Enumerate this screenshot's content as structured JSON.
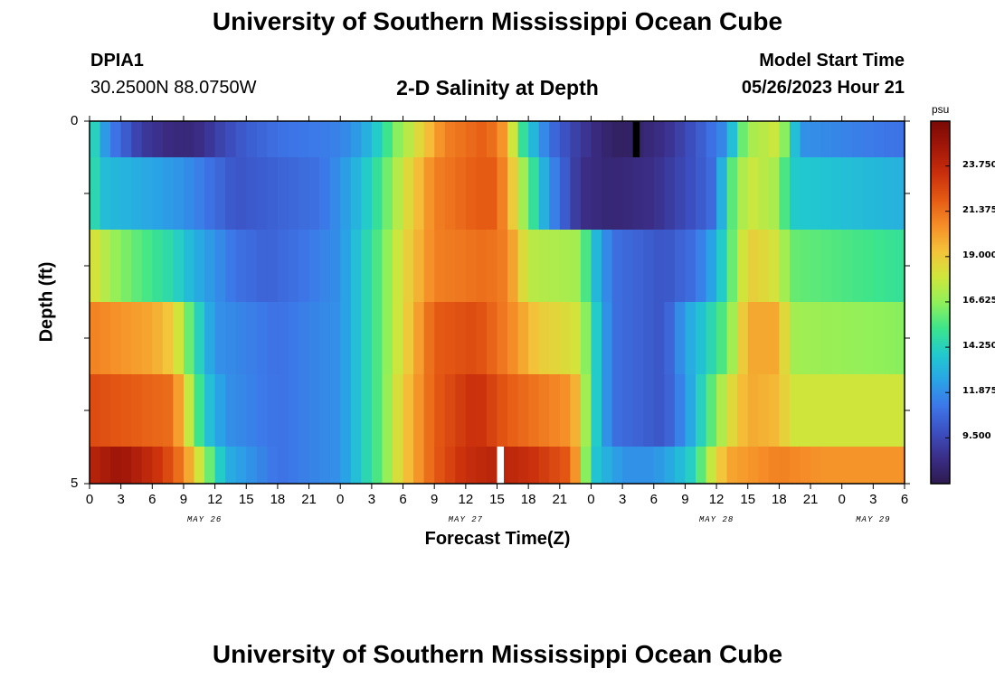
{
  "header": {
    "title_top": "University of Southern Mississippi Ocean Cube",
    "title_bottom": "University of Southern Mississippi Ocean Cube",
    "station_id": "DPIA1",
    "coords": "30.2500N  88.0750W",
    "plot_title": "2-D Salinity at Depth",
    "model_label": "Model Start Time",
    "model_time": "05/26/2023 Hour 21"
  },
  "colors": {
    "ramp": [
      "#2c1a4d",
      "#3b2d86",
      "#3c4fc0",
      "#3d76e8",
      "#2aa3e6",
      "#21c9cf",
      "#3be48d",
      "#8ff05a",
      "#cfe63c",
      "#f4c33a",
      "#f58d27",
      "#e55a14",
      "#c92f0c",
      "#a31809",
      "#7a0906"
    ],
    "missing_light": "#ffffff",
    "missing_dark": "#000000"
  },
  "chart_data": {
    "type": "heatmap",
    "title": "2-D Salinity at Depth",
    "xlabel": "Forecast Time(Z)",
    "ylabel": "Depth (ft)",
    "y_tick_labels": [
      "0",
      "5"
    ],
    "ylim": [
      0,
      5
    ],
    "x_hours": [
      0,
      3,
      6,
      9,
      12,
      15,
      18,
      21,
      24,
      27,
      30,
      33,
      36,
      39,
      42,
      45,
      48,
      51,
      54,
      57,
      60,
      63,
      66,
      69,
      72,
      75,
      78
    ],
    "x_tick_labels": [
      "0",
      "3",
      "6",
      "9",
      "12",
      "15",
      "18",
      "21",
      "0",
      "3",
      "6",
      "9",
      "12",
      "15",
      "18",
      "21",
      "0",
      "3",
      "6",
      "9",
      "12",
      "15",
      "18",
      "21",
      "0",
      "3",
      "6"
    ],
    "date_labels": [
      {
        "label": "MAY 26",
        "hour": 11
      },
      {
        "label": "MAY 27",
        "hour": 36
      },
      {
        "label": "MAY 28",
        "hour": 60
      },
      {
        "label": "MAY 29",
        "hour": 75
      }
    ],
    "colorbar": {
      "unit": "psu",
      "min": 7.1,
      "max": 26.1,
      "tick_values": [
        9.5,
        11.875,
        14.25,
        16.625,
        19.0,
        21.375,
        23.75
      ],
      "tick_labels": [
        "9.500",
        "11.875",
        "14.250",
        "16.625",
        "19.000",
        "21.375",
        "23.750"
      ]
    },
    "layers": [
      {
        "depth_ft": 0.25,
        "salinity_keyframes": [
          [
            0,
            15.5
          ],
          [
            1,
            13
          ],
          [
            2,
            11.5
          ],
          [
            5,
            9
          ],
          [
            8,
            8.2
          ],
          [
            10,
            8.2
          ],
          [
            14,
            10
          ],
          [
            18,
            11
          ],
          [
            24,
            11.5
          ],
          [
            26,
            12.5
          ],
          [
            28,
            14.5
          ],
          [
            29,
            16
          ],
          [
            31,
            18
          ],
          [
            34,
            21
          ],
          [
            38,
            22
          ],
          [
            40,
            20
          ],
          [
            41,
            16
          ],
          [
            42,
            14
          ],
          [
            44,
            11
          ],
          [
            46,
            9.5
          ],
          [
            49,
            8
          ],
          [
            51,
            7.5
          ],
          [
            55,
            8.5
          ],
          [
            58,
            10
          ],
          [
            61,
            12
          ],
          [
            62,
            15
          ],
          [
            63,
            17
          ],
          [
            66,
            18
          ],
          [
            67,
            15
          ],
          [
            68,
            12
          ],
          [
            78,
            11
          ]
        ]
      },
      {
        "depth_ft": 1.0,
        "salinity_keyframes": [
          [
            0,
            15.5
          ],
          [
            1,
            13.5
          ],
          [
            4,
            13
          ],
          [
            9,
            12
          ],
          [
            14,
            10
          ],
          [
            18,
            10.5
          ],
          [
            22,
            11
          ],
          [
            24,
            12
          ],
          [
            26,
            13.5
          ],
          [
            28,
            15.5
          ],
          [
            30,
            18
          ],
          [
            33,
            21
          ],
          [
            37,
            22
          ],
          [
            39,
            22
          ],
          [
            40,
            20
          ],
          [
            42,
            16
          ],
          [
            44,
            12
          ],
          [
            47,
            8.5
          ],
          [
            50,
            8
          ],
          [
            54,
            8.5
          ],
          [
            58,
            10
          ],
          [
            60,
            11
          ],
          [
            61,
            15
          ],
          [
            63,
            18
          ],
          [
            66,
            17
          ],
          [
            67,
            14
          ],
          [
            78,
            13
          ]
        ]
      },
      {
        "depth_ft": 2.0,
        "salinity_keyframes": [
          [
            0,
            18.5
          ],
          [
            2,
            17
          ],
          [
            4,
            16
          ],
          [
            8,
            14.5
          ],
          [
            10,
            13
          ],
          [
            14,
            11
          ],
          [
            17,
            10.5
          ],
          [
            20,
            11
          ],
          [
            24,
            12
          ],
          [
            26,
            14
          ],
          [
            28,
            16
          ],
          [
            30,
            18.5
          ],
          [
            33,
            21
          ],
          [
            38,
            21.5
          ],
          [
            40,
            21
          ],
          [
            42,
            17.5
          ],
          [
            47,
            17
          ],
          [
            48,
            14
          ],
          [
            50,
            11
          ],
          [
            55,
            10
          ],
          [
            58,
            11
          ],
          [
            60,
            13
          ],
          [
            61,
            15
          ],
          [
            63,
            19
          ],
          [
            66,
            18
          ],
          [
            67,
            16
          ],
          [
            78,
            15
          ]
        ]
      },
      {
        "depth_ft": 3.0,
        "salinity_keyframes": [
          [
            0,
            21
          ],
          [
            6,
            20
          ],
          [
            8,
            19
          ],
          [
            9,
            17
          ],
          [
            10,
            15
          ],
          [
            12,
            12
          ],
          [
            18,
            11
          ],
          [
            24,
            12
          ],
          [
            26,
            14
          ],
          [
            28,
            16
          ],
          [
            30,
            18.5
          ],
          [
            33,
            22
          ],
          [
            37,
            22.5
          ],
          [
            40,
            21
          ],
          [
            43,
            19
          ],
          [
            47,
            18
          ],
          [
            48,
            15
          ],
          [
            50,
            11
          ],
          [
            55,
            10
          ],
          [
            57,
            12.5
          ],
          [
            59,
            14
          ],
          [
            61,
            16
          ],
          [
            63,
            20
          ],
          [
            66,
            20
          ],
          [
            67,
            17
          ],
          [
            78,
            16.5
          ]
        ]
      },
      {
        "depth_ft": 4.0,
        "salinity_keyframes": [
          [
            0,
            22.5
          ],
          [
            8,
            21.5
          ],
          [
            9,
            19
          ],
          [
            10,
            16.5
          ],
          [
            11,
            14
          ],
          [
            13,
            12
          ],
          [
            18,
            11
          ],
          [
            24,
            12
          ],
          [
            26,
            14
          ],
          [
            28,
            16
          ],
          [
            30,
            19
          ],
          [
            33,
            22
          ],
          [
            37,
            23.5
          ],
          [
            40,
            22
          ],
          [
            46,
            20.5
          ],
          [
            47,
            19
          ],
          [
            48,
            15
          ],
          [
            50,
            11
          ],
          [
            55,
            10
          ],
          [
            57,
            12
          ],
          [
            59,
            15
          ],
          [
            61,
            18
          ],
          [
            63,
            20
          ],
          [
            66,
            19.5
          ],
          [
            67,
            18
          ],
          [
            78,
            18
          ]
        ]
      },
      {
        "depth_ft": 4.75,
        "salinity_keyframes": [
          [
            0,
            24
          ],
          [
            3,
            25
          ],
          [
            7,
            23
          ],
          [
            9,
            21
          ],
          [
            10,
            19
          ],
          [
            11,
            17
          ],
          [
            12,
            15
          ],
          [
            13,
            13
          ],
          [
            18,
            11
          ],
          [
            24,
            12
          ],
          [
            26,
            14
          ],
          [
            28,
            16
          ],
          [
            30,
            19
          ],
          [
            33,
            22
          ],
          [
            36,
            23.5
          ],
          [
            39,
            24
          ],
          [
            42,
            23.5
          ],
          [
            46,
            22
          ],
          [
            47,
            19
          ],
          [
            48,
            14
          ],
          [
            51,
            12
          ],
          [
            54,
            12
          ],
          [
            56,
            13
          ],
          [
            58,
            14.5
          ],
          [
            59,
            17
          ],
          [
            61,
            20
          ],
          [
            66,
            21
          ],
          [
            70,
            20.5
          ],
          [
            78,
            20.5
          ]
        ]
      }
    ],
    "missing_cells": [
      {
        "layer_index": 0,
        "hour": 52,
        "color": "missing_dark"
      },
      {
        "layer_index": 5,
        "hour": 39,
        "color": "missing_light"
      }
    ]
  },
  "labels": {
    "xlabel": "Forecast Time(Z)",
    "ylabel": "Depth (ft)",
    "colorbar_unit": "psu"
  }
}
